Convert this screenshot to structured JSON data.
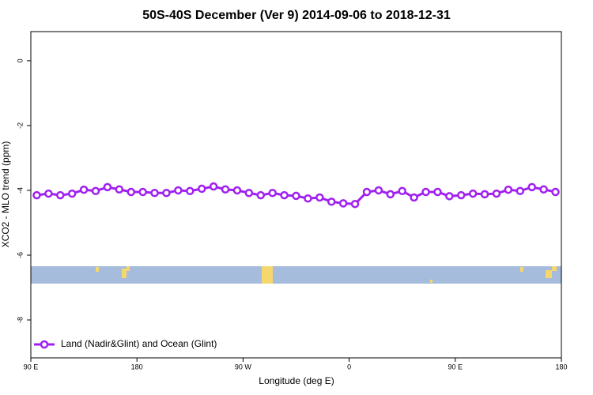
{
  "chart_data": {
    "type": "line",
    "title": "50S-40S December (Ver 9)   2014-09-06 to 2018-12-31",
    "x_label": "Longitude (deg E)",
    "y_label": "XCO2 - MLO trend (ppm)",
    "xlim": [
      90,
      540
    ],
    "xticks": [
      {
        "value": 90,
        "label": "90 E"
      },
      {
        "value": 180,
        "label": "180"
      },
      {
        "value": 270,
        "label": "90 W"
      },
      {
        "value": 360,
        "label": "0"
      },
      {
        "value": 450,
        "label": "90 E"
      },
      {
        "value": 540,
        "label": "180"
      }
    ],
    "ylim": [
      -9.17,
      0.9
    ],
    "yticks": [
      0,
      -2,
      -4,
      -6,
      -8
    ],
    "legend": "bottomleft",
    "x": [
      95,
      105,
      115,
      125,
      135,
      145,
      155,
      165,
      175,
      185,
      195,
      205,
      215,
      225,
      235,
      245,
      255,
      265,
      275,
      285,
      295,
      305,
      315,
      325,
      335,
      345,
      355,
      365,
      375,
      385,
      395,
      405,
      415,
      425,
      435,
      445,
      455,
      465,
      475,
      485,
      495,
      505,
      515,
      525,
      535
    ],
    "series": [
      {
        "name": "Land (Nadir&Glint) and Ocean (Glint)",
        "color": "#a020f0",
        "values": [
          -4.15,
          -4.1,
          -4.15,
          -4.1,
          -3.98,
          -4.02,
          -3.9,
          -3.97,
          -4.05,
          -4.05,
          -4.08,
          -4.08,
          -4.0,
          -4.02,
          -3.95,
          -3.88,
          -3.97,
          -4.0,
          -4.08,
          -4.15,
          -4.08,
          -4.15,
          -4.17,
          -4.25,
          -4.22,
          -4.35,
          -4.4,
          -4.42,
          -4.05,
          -4.0,
          -4.12,
          -4.02,
          -4.22,
          -4.05,
          -4.05,
          -4.18,
          -4.15,
          -4.1,
          -4.12,
          -4.1,
          -3.98,
          -4.02,
          -3.9,
          -3.97,
          -4.05
        ]
      }
    ]
  }
}
